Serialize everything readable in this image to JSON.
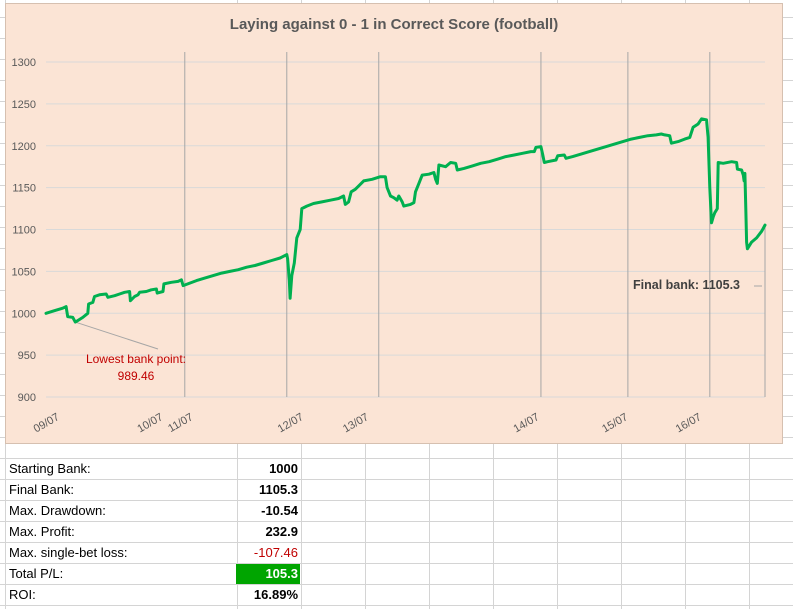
{
  "chart_data": {
    "type": "line",
    "title": "Laying against 0 - 1 in Correct Score (football)",
    "ylim": [
      900,
      1300
    ],
    "yticks": [
      900,
      950,
      1000,
      1050,
      1100,
      1150,
      1200,
      1250,
      1300
    ],
    "x_labels": [
      "09/07",
      "10/07",
      "11/07",
      "12/07",
      "13/07",
      "14/07",
      "15/07",
      "16/07"
    ],
    "series": [
      {
        "color": "#00b050",
        "points": [
          [
            0,
            1000
          ],
          [
            0.5,
            1003
          ],
          [
            1.0,
            1006
          ],
          [
            1.2,
            1008
          ],
          [
            1.3,
            996
          ],
          [
            1.6,
            995
          ],
          [
            1.75,
            989.46
          ],
          [
            2.2,
            995
          ],
          [
            2.5,
            1000
          ],
          [
            2.55,
            1011
          ],
          [
            2.8,
            1013
          ],
          [
            2.9,
            1020
          ],
          [
            3.2,
            1022
          ],
          [
            3.6,
            1023
          ],
          [
            3.7,
            1019
          ],
          [
            4.1,
            1021
          ],
          [
            4.4,
            1023
          ],
          [
            4.7,
            1025
          ],
          [
            5.0,
            1026
          ],
          [
            5.05,
            1015
          ],
          [
            5.3,
            1020
          ],
          [
            5.5,
            1022
          ],
          [
            5.6,
            1025
          ],
          [
            6.0,
            1026
          ],
          [
            6.3,
            1028
          ],
          [
            6.6,
            1029
          ],
          [
            6.65,
            1024
          ],
          [
            7.0,
            1026
          ],
          [
            7.05,
            1035
          ],
          [
            7.5,
            1037
          ],
          [
            7.9,
            1038
          ],
          [
            8.1,
            1040
          ],
          [
            8.2,
            1033
          ],
          [
            8.6,
            1036
          ],
          [
            9.0,
            1039
          ],
          [
            9.5,
            1042
          ],
          [
            10.0,
            1045
          ],
          [
            10.5,
            1048
          ],
          [
            11.0,
            1050
          ],
          [
            11.5,
            1052
          ],
          [
            12.0,
            1055
          ],
          [
            12.5,
            1057
          ],
          [
            13.0,
            1060
          ],
          [
            13.5,
            1063
          ],
          [
            14.0,
            1066
          ],
          [
            14.2,
            1068
          ],
          [
            14.4,
            1070
          ],
          [
            14.45,
            1065
          ],
          [
            14.55,
            1040
          ],
          [
            14.6,
            1018
          ],
          [
            14.7,
            1045
          ],
          [
            14.85,
            1060
          ],
          [
            15.0,
            1090
          ],
          [
            15.2,
            1100
          ],
          [
            15.3,
            1125
          ],
          [
            15.6,
            1128
          ],
          [
            16.0,
            1131
          ],
          [
            16.5,
            1133
          ],
          [
            17.0,
            1135
          ],
          [
            17.5,
            1137
          ],
          [
            17.8,
            1140
          ],
          [
            17.9,
            1130
          ],
          [
            18.1,
            1133
          ],
          [
            18.25,
            1145
          ],
          [
            18.5,
            1148
          ],
          [
            18.7,
            1152
          ],
          [
            19.0,
            1158
          ],
          [
            19.5,
            1160
          ],
          [
            20.0,
            1163
          ],
          [
            20.3,
            1163
          ],
          [
            20.4,
            1150
          ],
          [
            20.6,
            1140
          ],
          [
            20.8,
            1138
          ],
          [
            21.0,
            1135
          ],
          [
            21.1,
            1140
          ],
          [
            21.3,
            1133
          ],
          [
            21.4,
            1128
          ],
          [
            21.8,
            1130
          ],
          [
            22.0,
            1132
          ],
          [
            22.1,
            1145
          ],
          [
            22.3,
            1155
          ],
          [
            22.5,
            1165
          ],
          [
            22.9,
            1166
          ],
          [
            23.2,
            1168
          ],
          [
            23.3,
            1160
          ],
          [
            23.4,
            1155
          ],
          [
            23.5,
            1177
          ],
          [
            23.9,
            1175
          ],
          [
            24.2,
            1180
          ],
          [
            24.5,
            1179
          ],
          [
            24.6,
            1171
          ],
          [
            25.0,
            1173
          ],
          [
            25.5,
            1176
          ],
          [
            26.0,
            1179
          ],
          [
            26.5,
            1181
          ],
          [
            27.0,
            1184
          ],
          [
            27.5,
            1187
          ],
          [
            28.0,
            1189
          ],
          [
            28.5,
            1191
          ],
          [
            29.0,
            1193
          ],
          [
            29.2,
            1193
          ],
          [
            29.3,
            1198
          ],
          [
            29.6,
            1199
          ],
          [
            29.7,
            1190
          ],
          [
            29.8,
            1180
          ],
          [
            30.0,
            1181
          ],
          [
            30.5,
            1183
          ],
          [
            30.6,
            1188
          ],
          [
            31.0,
            1189
          ],
          [
            31.1,
            1185
          ],
          [
            31.5,
            1187
          ],
          [
            32.0,
            1190
          ],
          [
            32.5,
            1193
          ],
          [
            33.0,
            1196
          ],
          [
            33.5,
            1199
          ],
          [
            34.0,
            1202
          ],
          [
            34.5,
            1205
          ],
          [
            35.0,
            1208
          ],
          [
            35.5,
            1210
          ],
          [
            36.0,
            1212
          ],
          [
            36.5,
            1213
          ],
          [
            36.8,
            1214
          ],
          [
            37.0,
            1213
          ],
          [
            37.3,
            1212
          ],
          [
            37.4,
            1203
          ],
          [
            37.8,
            1205
          ],
          [
            38.2,
            1208
          ],
          [
            38.5,
            1210
          ],
          [
            38.7,
            1222
          ],
          [
            39.0,
            1226
          ],
          [
            39.2,
            1232
          ],
          [
            39.5,
            1231
          ],
          [
            39.6,
            1210
          ],
          [
            39.7,
            1150
          ],
          [
            39.8,
            1108
          ],
          [
            39.9,
            1115
          ],
          [
            40.0,
            1120
          ],
          [
            40.15,
            1125
          ],
          [
            40.2,
            1180
          ],
          [
            40.5,
            1179
          ],
          [
            41.0,
            1181
          ],
          [
            41.3,
            1180
          ],
          [
            41.35,
            1172
          ],
          [
            41.6,
            1171
          ],
          [
            41.7,
            1165
          ],
          [
            41.75,
            1158
          ],
          [
            41.8,
            1167
          ],
          [
            41.85,
            1125
          ],
          [
            41.9,
            1085
          ],
          [
            41.95,
            1077
          ],
          [
            42.2,
            1085
          ],
          [
            42.5,
            1090
          ],
          [
            42.8,
            1098
          ],
          [
            43.0,
            1105.3
          ]
        ]
      }
    ],
    "annotations": {
      "lowest_label": "Lowest bank point:",
      "lowest_value": "989.46",
      "final_text": "Final bank: 1105.3"
    }
  },
  "stats": [
    {
      "label": "Starting Bank:",
      "value": "1000",
      "value_color": "#000000",
      "bg": ""
    },
    {
      "label": "Final Bank:",
      "value": "1105.3",
      "value_color": "#000000",
      "bg": ""
    },
    {
      "label": "Max. Drawdown:",
      "value": "-10.54",
      "value_color": "#000000",
      "bg": ""
    },
    {
      "label": "Max. Profit:",
      "value": "232.9",
      "value_color": "#000000",
      "bg": ""
    },
    {
      "label": "Max. single-bet loss:",
      "value": "-107.46",
      "value_color": "#c00000",
      "bg": ""
    },
    {
      "label": "Total P/L:",
      "value": "105.3",
      "value_color": "#ffffff",
      "bg": "#00a500"
    },
    {
      "label": "ROI:",
      "value": "16.89%",
      "value_color": "#000000",
      "bg": ""
    }
  ]
}
